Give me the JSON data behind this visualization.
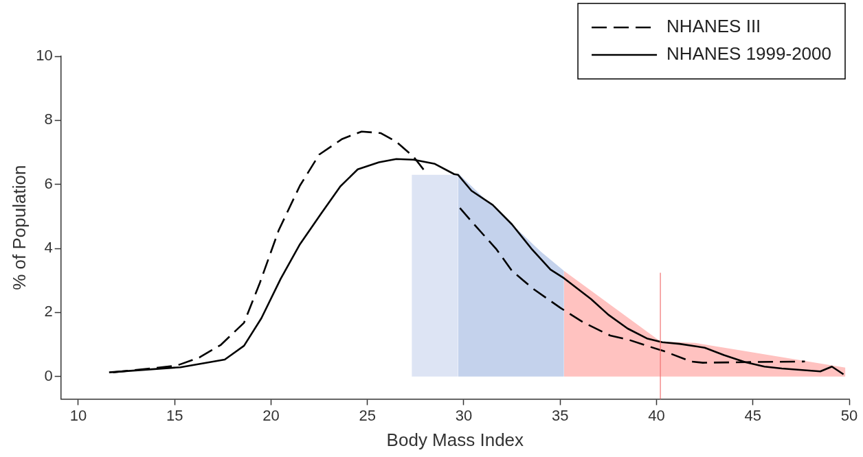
{
  "chart_data": {
    "type": "line",
    "xlabel": "Body Mass Index",
    "ylabel": "% of Population",
    "xlim": [
      9.1,
      50
    ],
    "ylim": [
      -0.7,
      10
    ],
    "xticks": [
      10,
      15,
      20,
      25,
      30,
      35,
      40,
      45,
      50
    ],
    "yticks": [
      0,
      2,
      4,
      6,
      8,
      10
    ],
    "grid": false,
    "legend": "top right",
    "series": [
      {
        "type": "area",
        "color": "#dde4f4",
        "x": [
          27.3,
          28.5,
          29.7
        ],
        "values": [
          6.3,
          6.3,
          6.3
        ]
      },
      {
        "type": "area",
        "color": "#c4d2ec",
        "x": [
          29.7,
          31.0,
          32.5,
          34.0,
          35.2
        ],
        "values": [
          6.35,
          5.6,
          4.75,
          3.9,
          3.3
        ]
      },
      {
        "type": "area",
        "color": "#ffc2c0",
        "x": [
          35.2,
          40.2,
          42.0,
          49.8
        ],
        "values": [
          3.3,
          1.1,
          1.05,
          0.28
        ]
      },
      {
        "name": "NHANES III",
        "color": "#000000",
        "line_style": "dashed",
        "x": [
          11.8,
          15.1,
          16.3,
          17.4,
          18.6,
          19.4,
          20.4,
          21.5,
          22.5,
          23.7,
          24.7,
          25.7,
          26.5,
          27.4,
          28.1,
          29.0,
          29.8,
          30.6,
          31.7,
          32.5,
          33.6,
          35.0,
          36.2,
          37.6,
          38.6,
          39.5,
          40.4,
          41.8,
          42.4,
          44.7,
          47.7
        ],
        "values": [
          0.13,
          0.34,
          0.6,
          0.99,
          1.68,
          2.89,
          4.57,
          5.96,
          6.93,
          7.42,
          7.65,
          7.6,
          7.33,
          6.86,
          6.32,
          null,
          5.26,
          4.71,
          3.97,
          3.3,
          2.74,
          2.15,
          1.69,
          1.28,
          1.14,
          0.96,
          0.79,
          0.47,
          0.43,
          0.45,
          0.47
        ]
      },
      {
        "name": "NHANES 1999-2000",
        "color": "#000000",
        "line_style": "solid",
        "x": [
          11.6,
          15.3,
          17.6,
          18.6,
          19.5,
          20.5,
          21.5,
          22.6,
          23.6,
          24.5,
          25.6,
          26.5,
          27.4,
          28.5,
          29.5,
          29.7,
          30.4,
          31.5,
          32.5,
          33.5,
          34.5,
          35.2,
          36.6,
          37.5,
          38.5,
          39.5,
          40.3,
          41.2,
          42.5,
          43.5,
          44.6,
          45.6,
          46.5,
          48.5,
          49.1,
          49.7
        ],
        "values": [
          0.13,
          0.29,
          0.53,
          0.96,
          1.82,
          3.05,
          4.13,
          5.09,
          5.94,
          6.47,
          6.69,
          6.79,
          6.77,
          6.64,
          6.32,
          6.3,
          5.8,
          5.36,
          4.75,
          4.0,
          3.34,
          3.07,
          2.42,
          1.93,
          1.5,
          1.19,
          1.07,
          1.02,
          0.9,
          0.67,
          0.45,
          0.31,
          0.25,
          0.16,
          0.31,
          0.07
        ]
      }
    ],
    "ref_lines": [
      {
        "axis": "x",
        "value": 40.2,
        "color": "#f07070"
      }
    ]
  }
}
